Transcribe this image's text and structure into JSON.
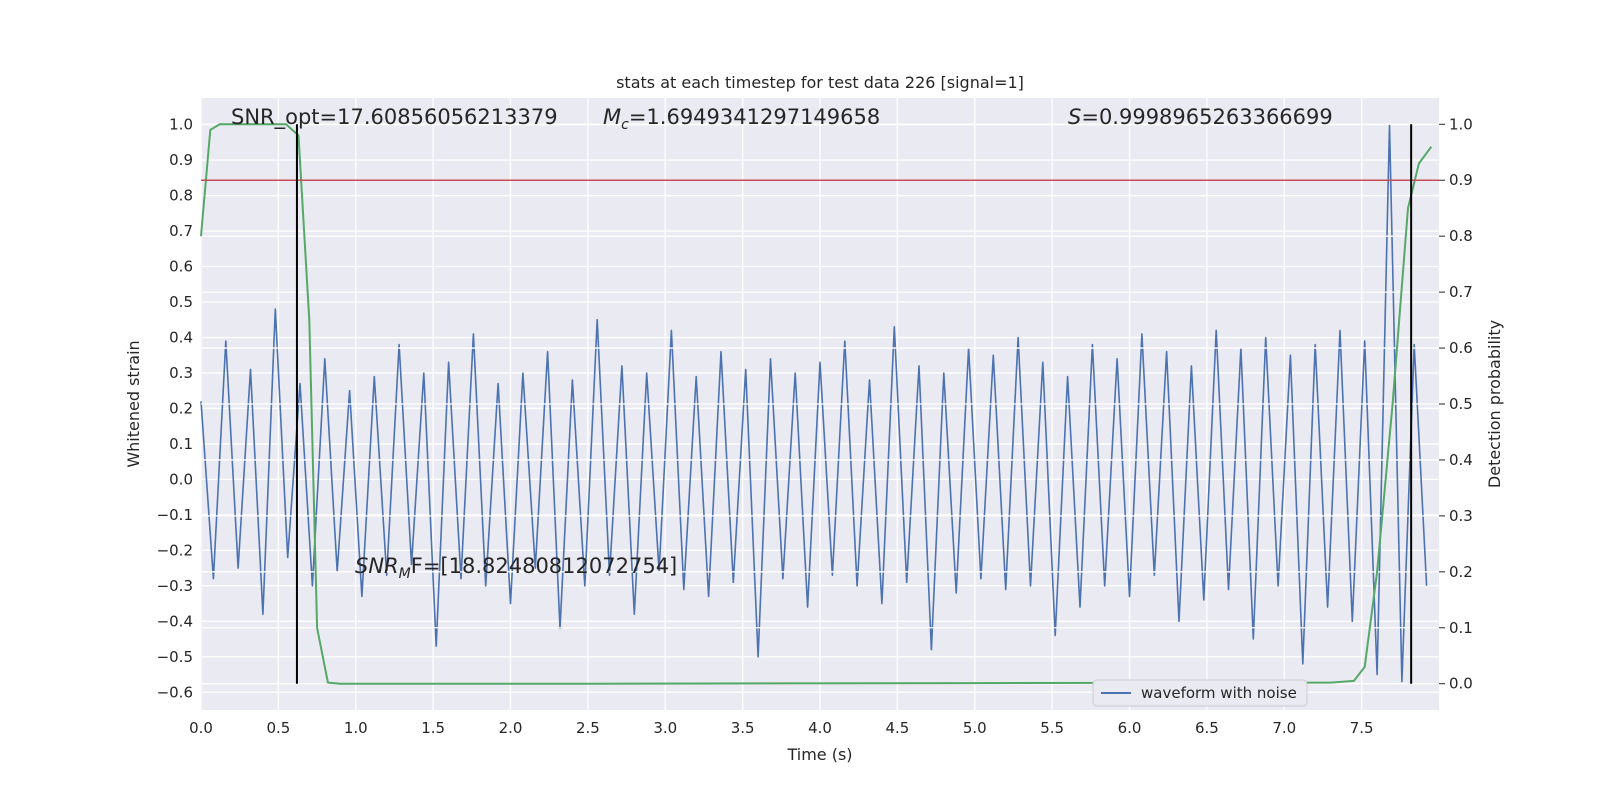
{
  "chart_data": {
    "type": "line",
    "title": "stats at each timestep for test data 226 [signal=1]",
    "xlabel": "Time (s)",
    "ylabel": "Whitened strain",
    "y2label": "Detection probability",
    "xlim": [
      0,
      8.0
    ],
    "ylim": [
      -0.65,
      1.075
    ],
    "y2lim": [
      -0.047,
      1.047
    ],
    "grid": true,
    "legend": "lower right",
    "xticks": [
      {
        "value": 0,
        "label": "0.0"
      },
      {
        "value": 0.5,
        "label": "0.5"
      },
      {
        "value": 1,
        "label": "1.0"
      },
      {
        "value": 1.5,
        "label": "1.5"
      },
      {
        "value": 2,
        "label": "2.0"
      },
      {
        "value": 2.5,
        "label": "2.5"
      },
      {
        "value": 3,
        "label": "3.0"
      },
      {
        "value": 3.5,
        "label": "3.5"
      },
      {
        "value": 4,
        "label": "4.0"
      },
      {
        "value": 4.5,
        "label": "4.5"
      },
      {
        "value": 5,
        "label": "5.0"
      },
      {
        "value": 5.5,
        "label": "5.5"
      },
      {
        "value": 6,
        "label": "6.0"
      },
      {
        "value": 6.5,
        "label": "6.5"
      },
      {
        "value": 7,
        "label": "7.0"
      },
      {
        "value": 7.5,
        "label": "7.5"
      }
    ],
    "yticks": [
      {
        "value": -0.6,
        "label": "−0.6"
      },
      {
        "value": -0.5,
        "label": "−0.5"
      },
      {
        "value": -0.4,
        "label": "−0.4"
      },
      {
        "value": -0.3,
        "label": "−0.3"
      },
      {
        "value": -0.2,
        "label": "−0.2"
      },
      {
        "value": -0.1,
        "label": "−0.1"
      },
      {
        "value": 0,
        "label": "0.0"
      },
      {
        "value": 0.1,
        "label": "0.1"
      },
      {
        "value": 0.2,
        "label": "0.2"
      },
      {
        "value": 0.3,
        "label": "0.3"
      },
      {
        "value": 0.4,
        "label": "0.4"
      },
      {
        "value": 0.5,
        "label": "0.5"
      },
      {
        "value": 0.6,
        "label": "0.6"
      },
      {
        "value": 0.7,
        "label": "0.7"
      },
      {
        "value": 0.8,
        "label": "0.8"
      },
      {
        "value": 0.9,
        "label": "0.9"
      },
      {
        "value": 1,
        "label": "1.0"
      }
    ],
    "y2ticks": [
      {
        "value": 0,
        "label": "0.0"
      },
      {
        "value": 0.1,
        "label": "0.1"
      },
      {
        "value": 0.2,
        "label": "0.2"
      },
      {
        "value": 0.3,
        "label": "0.3"
      },
      {
        "value": 0.4,
        "label": "0.4"
      },
      {
        "value": 0.5,
        "label": "0.5"
      },
      {
        "value": 0.6,
        "label": "0.6"
      },
      {
        "value": 0.7,
        "label": "0.7"
      },
      {
        "value": 0.8,
        "label": "0.8"
      },
      {
        "value": 0.9,
        "label": "0.9"
      },
      {
        "value": 1,
        "label": "1.0"
      }
    ],
    "series": [
      {
        "name": "waveform with noise",
        "color": "#4c72b0",
        "x": [
          0,
          0.08,
          0.16,
          0.24,
          0.32,
          0.4,
          0.48,
          0.56,
          0.64,
          0.72,
          0.8,
          0.88,
          0.96,
          1.04,
          1.12,
          1.2,
          1.28,
          1.36,
          1.44,
          1.52,
          1.6,
          1.68,
          1.76,
          1.84,
          1.92,
          2,
          2.08,
          2.16,
          2.24,
          2.32,
          2.4,
          2.48,
          2.56,
          2.64,
          2.72,
          2.8,
          2.88,
          2.96,
          3.04,
          3.12,
          3.2,
          3.28,
          3.36,
          3.44,
          3.52,
          3.6,
          3.68,
          3.76,
          3.84,
          3.92,
          4,
          4.08,
          4.16,
          4.24,
          4.32,
          4.4,
          4.48,
          4.56,
          4.64,
          4.72,
          4.8,
          4.88,
          4.96,
          5.04,
          5.12,
          5.2,
          5.28,
          5.36,
          5.44,
          5.52,
          5.6,
          5.68,
          5.76,
          5.84,
          5.92,
          6,
          6.08,
          6.16,
          6.24,
          6.32,
          6.4,
          6.48,
          6.56,
          6.64,
          6.72,
          6.8,
          6.88,
          6.96,
          7.04,
          7.12,
          7.2,
          7.28,
          7.36,
          7.44,
          7.52,
          7.6,
          7.68,
          7.76,
          7.84,
          7.92
        ],
        "values": [
          0.22,
          -0.28,
          0.39,
          -0.25,
          0.31,
          -0.38,
          0.48,
          -0.22,
          0.27,
          -0.3,
          0.34,
          -0.26,
          0.25,
          -0.33,
          0.29,
          -0.27,
          0.38,
          -0.24,
          0.3,
          -0.47,
          0.33,
          -0.28,
          0.41,
          -0.3,
          0.27,
          -0.35,
          0.3,
          -0.25,
          0.36,
          -0.42,
          0.28,
          -0.3,
          0.45,
          -0.27,
          0.32,
          -0.38,
          0.3,
          -0.26,
          0.42,
          -0.31,
          0.29,
          -0.33,
          0.36,
          -0.29,
          0.31,
          -0.5,
          0.34,
          -0.28,
          0.3,
          -0.36,
          0.33,
          -0.27,
          0.39,
          -0.3,
          0.28,
          -0.35,
          0.43,
          -0.29,
          0.32,
          -0.48,
          0.3,
          -0.32,
          0.37,
          -0.28,
          0.35,
          -0.31,
          0.4,
          -0.3,
          0.33,
          -0.44,
          0.29,
          -0.36,
          0.38,
          -0.3,
          0.34,
          -0.33,
          0.41,
          -0.27,
          0.36,
          -0.4,
          0.32,
          -0.34,
          0.42,
          -0.31,
          0.37,
          -0.45,
          0.4,
          -0.3,
          0.35,
          -0.52,
          0.38,
          -0.36,
          0.42,
          -0.4,
          0.39,
          -0.55,
          1.0,
          -0.57,
          0.38,
          -0.3
        ]
      },
      {
        "color": "#55a868",
        "axis": "y2",
        "x": [
          0,
          0.06,
          0.12,
          0.55,
          0.63,
          0.7,
          0.75,
          0.82,
          0.9,
          2.5,
          5,
          7.3,
          7.45,
          7.52,
          7.6,
          7.7,
          7.8,
          7.87,
          7.95
        ],
        "values": [
          0.8,
          0.99,
          1.0,
          1.0,
          0.98,
          0.65,
          0.1,
          0.002,
          0,
          0,
          0.001,
          0.002,
          0.005,
          0.03,
          0.2,
          0.5,
          0.85,
          0.93,
          0.96
        ]
      }
    ],
    "hline": {
      "value": 0.9,
      "axis": "y2",
      "color": "#c44e52"
    },
    "vlines": {
      "x": [
        0.62,
        7.82
      ],
      "ymin": 0,
      "ymax": 1,
      "axis": "y2",
      "color": "#000000"
    },
    "annotations": [
      {
        "text": "SNR_opt=17.60856056213379"
      },
      {
        "symbol": "M",
        "subscript": "c",
        "text": "=1.6949341297149658"
      },
      {
        "symbol": "S",
        "text": "=0.9998965263366699"
      },
      {
        "symbol": "SNR",
        "subscript": "M",
        "text": "F=[18.82480812072754]"
      }
    ]
  }
}
